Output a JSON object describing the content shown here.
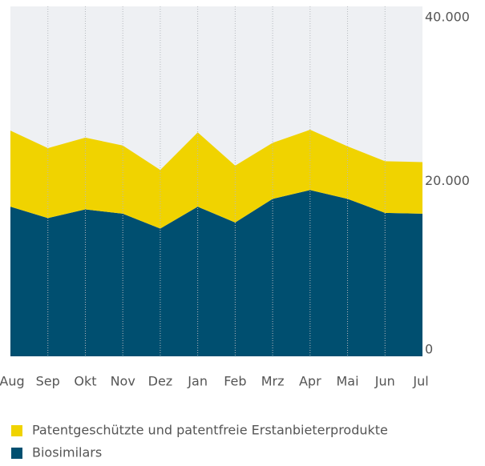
{
  "chart_data": {
    "type": "stacked-area",
    "categories": [
      "Aug",
      "Sep",
      "Okt",
      "Nov",
      "Dez",
      "Jan",
      "Feb",
      "Mrz",
      "Apr",
      "Mai",
      "Jun",
      "Jul"
    ],
    "series": [
      {
        "name": "Biosimilars",
        "color": "#004f70",
        "values": [
          17100,
          15800,
          16800,
          16300,
          14600,
          17100,
          15300,
          18000,
          19000,
          18000,
          16400,
          16300
        ]
      },
      {
        "name": "Patentgeschützte und patentfreie Erstanbieterprodukte",
        "color": "#f0d300",
        "values": [
          8700,
          8000,
          8200,
          7800,
          6700,
          8500,
          6500,
          6400,
          6900,
          6000,
          5900,
          5900
        ]
      }
    ],
    "ylim": [
      0,
      40000
    ],
    "yticks": [
      0,
      {
        "value": 20000,
        "label": "20.000"
      },
      {
        "value": 40000,
        "label": "40.000"
      }
    ]
  }
}
